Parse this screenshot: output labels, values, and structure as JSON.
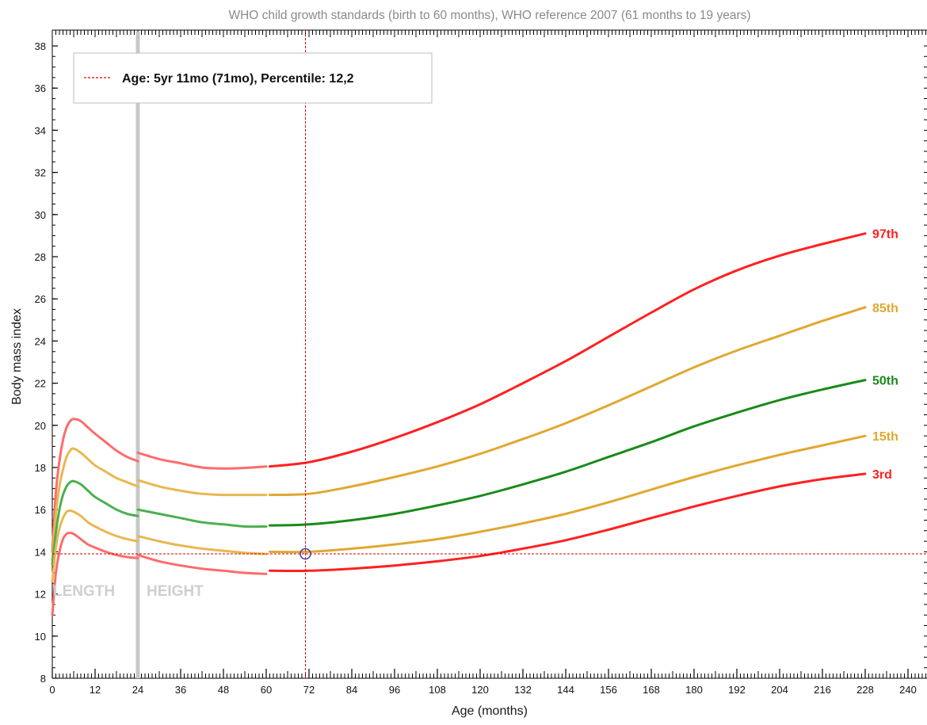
{
  "chart_data": {
    "type": "line",
    "title": "WHO child growth standards (birth to 60 months), WHO reference 2007 (61 months to 19 years)",
    "xlabel": "Age (months)",
    "ylabel": "Body mass index",
    "xlim": [
      0,
      246
    ],
    "ylim": [
      8,
      38
    ],
    "x_ticks": [
      0,
      12,
      24,
      36,
      48,
      60,
      72,
      84,
      96,
      108,
      120,
      132,
      144,
      156,
      168,
      180,
      192,
      204,
      216,
      228,
      240
    ],
    "y_ticks": [
      8,
      10,
      12,
      14,
      16,
      18,
      20,
      22,
      24,
      26,
      28,
      30,
      32,
      34,
      36,
      38
    ],
    "grid": false,
    "legend": {
      "position": "top-left",
      "text": "Age: 5yr 11mo (71mo), Percentile: 12,2",
      "color": "#dd0000"
    },
    "region_labels": [
      "LENGTH",
      "HEIGHT"
    ],
    "region_divider_x": 24,
    "marker": {
      "x": 71,
      "y": 13.9,
      "color": "#3b3bb0"
    },
    "series": [
      {
        "name": "97th",
        "color": "#ff2020",
        "light_color": "#ff6b6b",
        "segments": [
          [
            [
              0,
              14.0
            ],
            [
              1,
              16.8
            ],
            [
              2,
              18.3
            ],
            [
              3,
              19.3
            ],
            [
              4,
              19.9
            ],
            [
              5,
              20.2
            ],
            [
              6,
              20.3
            ],
            [
              8,
              20.2
            ],
            [
              10,
              19.9
            ],
            [
              12,
              19.6
            ],
            [
              15,
              19.2
            ],
            [
              18,
              18.8
            ],
            [
              21,
              18.5
            ],
            [
              24,
              18.3
            ]
          ],
          [
            [
              24,
              18.7
            ],
            [
              30,
              18.4
            ],
            [
              36,
              18.2
            ],
            [
              42,
              18.0
            ],
            [
              48,
              17.95
            ],
            [
              54,
              17.98
            ],
            [
              60,
              18.05
            ]
          ],
          [
            [
              61,
              18.05
            ],
            [
              72,
              18.25
            ],
            [
              84,
              18.75
            ],
            [
              96,
              19.4
            ],
            [
              108,
              20.15
            ],
            [
              120,
              21.0
            ],
            [
              132,
              22.0
            ],
            [
              144,
              23.05
            ],
            [
              156,
              24.2
            ],
            [
              168,
              25.35
            ],
            [
              180,
              26.45
            ],
            [
              192,
              27.35
            ],
            [
              204,
              28.05
            ],
            [
              216,
              28.6
            ],
            [
              228,
              29.1
            ]
          ]
        ]
      },
      {
        "name": "85th",
        "color": "#e0a830",
        "light_color": "#e8b850",
        "segments": [
          [
            [
              0,
              13.6
            ],
            [
              1,
              15.8
            ],
            [
              2,
              17.1
            ],
            [
              3,
              17.9
            ],
            [
              4,
              18.5
            ],
            [
              5,
              18.8
            ],
            [
              6,
              18.9
            ],
            [
              8,
              18.7
            ],
            [
              10,
              18.4
            ],
            [
              12,
              18.1
            ],
            [
              15,
              17.8
            ],
            [
              18,
              17.5
            ],
            [
              21,
              17.3
            ],
            [
              24,
              17.1
            ]
          ],
          [
            [
              24,
              17.4
            ],
            [
              30,
              17.1
            ],
            [
              36,
              16.9
            ],
            [
              42,
              16.75
            ],
            [
              48,
              16.7
            ],
            [
              54,
              16.7
            ],
            [
              60,
              16.7
            ]
          ],
          [
            [
              61,
              16.7
            ],
            [
              72,
              16.75
            ],
            [
              84,
              17.1
            ],
            [
              96,
              17.55
            ],
            [
              108,
              18.05
            ],
            [
              120,
              18.65
            ],
            [
              132,
              19.35
            ],
            [
              144,
              20.1
            ],
            [
              156,
              20.95
            ],
            [
              168,
              21.85
            ],
            [
              180,
              22.75
            ],
            [
              192,
              23.55
            ],
            [
              204,
              24.25
            ],
            [
              216,
              24.95
            ],
            [
              228,
              25.6
            ]
          ]
        ]
      },
      {
        "name": "50th",
        "color": "#1a8a1a",
        "light_color": "#4caf50",
        "segments": [
          [
            [
              0,
              13.4
            ],
            [
              1,
              14.9
            ],
            [
              2,
              16.0
            ],
            [
              3,
              16.7
            ],
            [
              4,
              17.1
            ],
            [
              5,
              17.3
            ],
            [
              6,
              17.35
            ],
            [
              8,
              17.2
            ],
            [
              10,
              16.9
            ],
            [
              12,
              16.6
            ],
            [
              15,
              16.3
            ],
            [
              18,
              16.0
            ],
            [
              21,
              15.8
            ],
            [
              24,
              15.7
            ]
          ],
          [
            [
              24,
              16.0
            ],
            [
              30,
              15.8
            ],
            [
              36,
              15.6
            ],
            [
              42,
              15.4
            ],
            [
              48,
              15.3
            ],
            [
              54,
              15.2
            ],
            [
              60,
              15.2
            ]
          ],
          [
            [
              61,
              15.25
            ],
            [
              72,
              15.3
            ],
            [
              84,
              15.5
            ],
            [
              96,
              15.8
            ],
            [
              108,
              16.2
            ],
            [
              120,
              16.65
            ],
            [
              132,
              17.2
            ],
            [
              144,
              17.8
            ],
            [
              156,
              18.5
            ],
            [
              168,
              19.2
            ],
            [
              180,
              19.95
            ],
            [
              192,
              20.6
            ],
            [
              204,
              21.2
            ],
            [
              216,
              21.7
            ],
            [
              228,
              22.15
            ]
          ]
        ]
      },
      {
        "name": "15th",
        "color": "#e0a830",
        "light_color": "#e8b850",
        "segments": [
          [
            [
              0,
              12.6
            ],
            [
              1,
              14.2
            ],
            [
              2,
              15.1
            ],
            [
              3,
              15.6
            ],
            [
              4,
              15.9
            ],
            [
              5,
              15.95
            ],
            [
              6,
              15.9
            ],
            [
              8,
              15.7
            ],
            [
              10,
              15.4
            ],
            [
              12,
              15.2
            ],
            [
              15,
              14.95
            ],
            [
              18,
              14.75
            ],
            [
              21,
              14.6
            ],
            [
              24,
              14.5
            ]
          ],
          [
            [
              24,
              14.75
            ],
            [
              30,
              14.5
            ],
            [
              36,
              14.3
            ],
            [
              42,
              14.15
            ],
            [
              48,
              14.05
            ],
            [
              54,
              13.95
            ],
            [
              60,
              13.9
            ]
          ],
          [
            [
              61,
              14.0
            ],
            [
              72,
              14.0
            ],
            [
              84,
              14.15
            ],
            [
              96,
              14.35
            ],
            [
              108,
              14.6
            ],
            [
              120,
              14.95
            ],
            [
              132,
              15.35
            ],
            [
              144,
              15.8
            ],
            [
              156,
              16.35
            ],
            [
              168,
              16.95
            ],
            [
              180,
              17.55
            ],
            [
              192,
              18.1
            ],
            [
              204,
              18.6
            ],
            [
              216,
              19.05
            ],
            [
              228,
              19.5
            ]
          ]
        ]
      },
      {
        "name": "3rd",
        "color": "#ff2020",
        "light_color": "#ff6b6b",
        "segments": [
          [
            [
              0,
              11.0
            ],
            [
              1,
              13.0
            ],
            [
              2,
              14.0
            ],
            [
              3,
              14.6
            ],
            [
              4,
              14.85
            ],
            [
              5,
              14.9
            ],
            [
              6,
              14.85
            ],
            [
              8,
              14.6
            ],
            [
              10,
              14.35
            ],
            [
              12,
              14.2
            ],
            [
              15,
              14.0
            ],
            [
              18,
              13.85
            ],
            [
              21,
              13.75
            ],
            [
              24,
              13.7
            ]
          ],
          [
            [
              24,
              13.85
            ],
            [
              30,
              13.55
            ],
            [
              36,
              13.35
            ],
            [
              42,
              13.2
            ],
            [
              48,
              13.1
            ],
            [
              54,
              13.0
            ],
            [
              60,
              12.95
            ]
          ],
          [
            [
              61,
              13.1
            ],
            [
              72,
              13.1
            ],
            [
              84,
              13.2
            ],
            [
              96,
              13.35
            ],
            [
              108,
              13.55
            ],
            [
              120,
              13.8
            ],
            [
              132,
              14.15
            ],
            [
              144,
              14.55
            ],
            [
              156,
              15.05
            ],
            [
              168,
              15.6
            ],
            [
              180,
              16.15
            ],
            [
              192,
              16.65
            ],
            [
              204,
              17.1
            ],
            [
              216,
              17.45
            ],
            [
              228,
              17.7
            ]
          ]
        ]
      }
    ]
  }
}
